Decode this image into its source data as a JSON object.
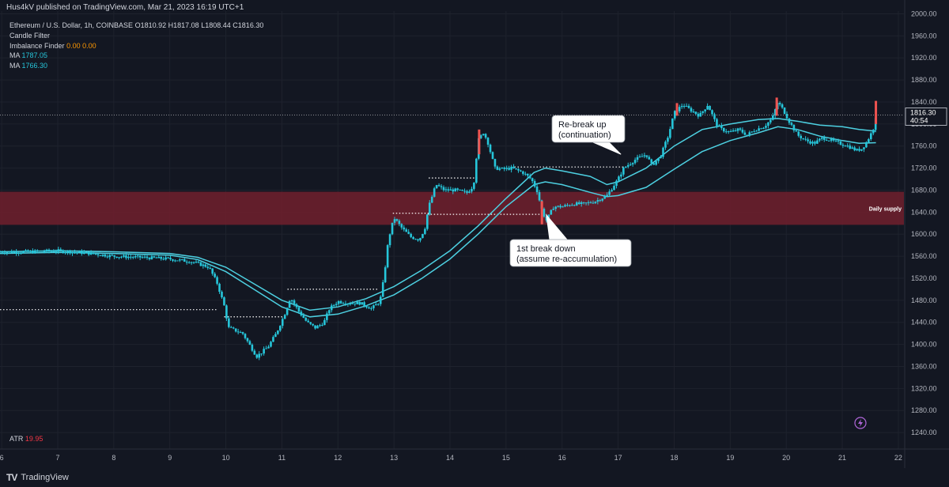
{
  "header": {
    "published": "Hus4kV published on TradingView.com, Mar 21, 2023 16:19 UTC+1"
  },
  "legend": {
    "symbol": "Ethereum / U.S. Dollar, 1h, COINBASE",
    "o_label": "O",
    "o_value": "1810.92",
    "h_label": "H",
    "h_value": "1817.08",
    "l_label": "L",
    "l_value": "1808.44",
    "c_label": "C",
    "c_value": "1816.30",
    "indicator_1": "Candle Filter",
    "indicator_2": "Imbalance Finder",
    "indicator_2_values": [
      "0.00",
      "0.00"
    ],
    "ma1_label": "MA",
    "ma1_value": "1787.05",
    "ma2_label": "MA",
    "ma2_value": "1766.30"
  },
  "atr": {
    "label": "ATR",
    "value": "19.95"
  },
  "price_tag": {
    "price": "1816.30",
    "countdown": "40:54"
  },
  "footer": {
    "brand": "TradingView"
  },
  "colors": {
    "background": "#131722",
    "grid": "#1e222d",
    "up": "#26a69a",
    "down": "#ef5350",
    "wick": "#26c6da",
    "ma": "#4dd0e1",
    "zone": "#6b1f2c",
    "dotted": "#ffffff",
    "orange": "#ff9800",
    "atr_red": "#f23645",
    "ma_label": "#26c6da"
  },
  "chart_data": {
    "type": "candlestick",
    "title": "Ethereum / U.S. Dollar, 1h, COINBASE",
    "x_tick_labels": [
      "6",
      "7",
      "8",
      "9",
      "10",
      "11",
      "12",
      "13",
      "14",
      "15",
      "16",
      "17",
      "18",
      "19",
      "20",
      "21",
      "22"
    ],
    "x_ticks_day": [
      6,
      7,
      8,
      9,
      10,
      11,
      12,
      13,
      14,
      15,
      16,
      17,
      18,
      19,
      20,
      21,
      22
    ],
    "y_tick_labels": [
      "2000.00",
      "1960.00",
      "1920.00",
      "1880.00",
      "1840.00",
      "1800.00",
      "1760.00",
      "1720.00",
      "1680.00",
      "1640.00",
      "1600.00",
      "1560.00",
      "1520.00",
      "1480.00",
      "1440.00",
      "1400.00",
      "1360.00",
      "1320.00",
      "1280.00",
      "1240.00"
    ],
    "y_ticks": [
      2000,
      1960,
      1920,
      1880,
      1840,
      1800,
      1760,
      1720,
      1680,
      1640,
      1600,
      1560,
      1520,
      1480,
      1440,
      1400,
      1360,
      1320,
      1280,
      1240
    ],
    "x_range_days": [
      5.97,
      22.1
    ],
    "y_range": [
      1210,
      2005
    ],
    "grid": true,
    "current_price": 1816.3,
    "price_path": [
      [
        5.97,
        1568
      ],
      [
        6.5,
        1568
      ],
      [
        7.0,
        1570
      ],
      [
        7.5,
        1566
      ],
      [
        8.0,
        1560
      ],
      [
        8.5,
        1558
      ],
      [
        9.0,
        1555
      ],
      [
        9.4,
        1550
      ],
      [
        9.7,
        1540
      ],
      [
        9.85,
        1510
      ],
      [
        9.97,
        1470
      ],
      [
        10.05,
        1430
      ],
      [
        10.3,
        1420
      ],
      [
        10.55,
        1378
      ],
      [
        10.75,
        1395
      ],
      [
        10.9,
        1420
      ],
      [
        11.05,
        1455
      ],
      [
        11.15,
        1485
      ],
      [
        11.3,
        1460
      ],
      [
        11.45,
        1440
      ],
      [
        11.6,
        1430
      ],
      [
        11.75,
        1440
      ],
      [
        11.85,
        1465
      ],
      [
        12.0,
        1478
      ],
      [
        12.2,
        1475
      ],
      [
        12.4,
        1475
      ],
      [
        12.6,
        1465
      ],
      [
        12.75,
        1478
      ],
      [
        12.82,
        1520
      ],
      [
        12.9,
        1590
      ],
      [
        13.0,
        1630
      ],
      [
        13.15,
        1610
      ],
      [
        13.3,
        1595
      ],
      [
        13.45,
        1590
      ],
      [
        13.55,
        1610
      ],
      [
        13.62,
        1650
      ],
      [
        13.75,
        1690
      ],
      [
        13.9,
        1680
      ],
      [
        14.1,
        1680
      ],
      [
        14.3,
        1675
      ],
      [
        14.42,
        1688
      ],
      [
        14.5,
        1770
      ],
      [
        14.6,
        1785
      ],
      [
        14.68,
        1765
      ],
      [
        14.8,
        1720
      ],
      [
        14.95,
        1718
      ],
      [
        15.1,
        1720
      ],
      [
        15.3,
        1712
      ],
      [
        15.45,
        1700
      ],
      [
        15.55,
        1680
      ],
      [
        15.65,
        1640
      ],
      [
        15.72,
        1625
      ],
      [
        15.85,
        1650
      ],
      [
        16.0,
        1650
      ],
      [
        16.2,
        1655
      ],
      [
        16.4,
        1655
      ],
      [
        16.6,
        1660
      ],
      [
        16.8,
        1670
      ],
      [
        16.9,
        1685
      ],
      [
        17.0,
        1700
      ],
      [
        17.1,
        1720
      ],
      [
        17.3,
        1735
      ],
      [
        17.5,
        1745
      ],
      [
        17.6,
        1725
      ],
      [
        17.75,
        1740
      ],
      [
        17.9,
        1780
      ],
      [
        18.0,
        1820
      ],
      [
        18.15,
        1835
      ],
      [
        18.3,
        1825
      ],
      [
        18.45,
        1815
      ],
      [
        18.6,
        1835
      ],
      [
        18.75,
        1800
      ],
      [
        18.85,
        1790
      ],
      [
        19.0,
        1785
      ],
      [
        19.15,
        1790
      ],
      [
        19.3,
        1780
      ],
      [
        19.45,
        1790
      ],
      [
        19.6,
        1795
      ],
      [
        19.75,
        1810
      ],
      [
        19.85,
        1840
      ],
      [
        19.95,
        1825
      ],
      [
        20.05,
        1805
      ],
      [
        20.2,
        1780
      ],
      [
        20.35,
        1770
      ],
      [
        20.5,
        1765
      ],
      [
        20.65,
        1775
      ],
      [
        20.8,
        1770
      ],
      [
        20.95,
        1765
      ],
      [
        21.1,
        1760
      ],
      [
        21.25,
        1752
      ],
      [
        21.35,
        1755
      ],
      [
        21.45,
        1770
      ],
      [
        21.55,
        1790
      ],
      [
        21.6,
        1816
      ]
    ],
    "moving_averages": [
      {
        "label": "MA",
        "value": 1787.05,
        "points": [
          [
            5.97,
            1568
          ],
          [
            7.0,
            1570
          ],
          [
            8.0,
            1568
          ],
          [
            9.0,
            1565
          ],
          [
            9.5,
            1558
          ],
          [
            10.0,
            1540
          ],
          [
            10.5,
            1510
          ],
          [
            11.0,
            1480
          ],
          [
            11.5,
            1462
          ],
          [
            12.0,
            1468
          ],
          [
            12.5,
            1483
          ],
          [
            13.0,
            1505
          ],
          [
            13.5,
            1535
          ],
          [
            14.0,
            1570
          ],
          [
            14.5,
            1615
          ],
          [
            15.0,
            1665
          ],
          [
            15.5,
            1712
          ],
          [
            15.7,
            1720
          ],
          [
            16.0,
            1715
          ],
          [
            16.5,
            1705
          ],
          [
            16.8,
            1690
          ],
          [
            17.0,
            1695
          ],
          [
            17.5,
            1720
          ],
          [
            18.0,
            1760
          ],
          [
            18.5,
            1790
          ],
          [
            19.0,
            1800
          ],
          [
            19.5,
            1808
          ],
          [
            19.85,
            1810
          ],
          [
            20.2,
            1805
          ],
          [
            20.6,
            1798
          ],
          [
            21.0,
            1795
          ],
          [
            21.3,
            1790
          ],
          [
            21.6,
            1787
          ]
        ]
      },
      {
        "label": "MA",
        "value": 1766.3,
        "points": [
          [
            5.97,
            1565
          ],
          [
            7.0,
            1567
          ],
          [
            8.0,
            1565
          ],
          [
            9.0,
            1562
          ],
          [
            9.5,
            1554
          ],
          [
            10.0,
            1532
          ],
          [
            10.5,
            1500
          ],
          [
            11.0,
            1468
          ],
          [
            11.5,
            1450
          ],
          [
            12.0,
            1455
          ],
          [
            12.5,
            1470
          ],
          [
            13.0,
            1490
          ],
          [
            13.5,
            1520
          ],
          [
            14.0,
            1555
          ],
          [
            14.5,
            1600
          ],
          [
            15.0,
            1650
          ],
          [
            15.5,
            1690
          ],
          [
            15.7,
            1695
          ],
          [
            16.0,
            1690
          ],
          [
            16.5,
            1676
          ],
          [
            16.8,
            1668
          ],
          [
            17.0,
            1670
          ],
          [
            17.5,
            1685
          ],
          [
            18.0,
            1718
          ],
          [
            18.5,
            1750
          ],
          [
            19.0,
            1770
          ],
          [
            19.5,
            1784
          ],
          [
            19.85,
            1795
          ],
          [
            20.2,
            1790
          ],
          [
            20.6,
            1778
          ],
          [
            21.0,
            1770
          ],
          [
            21.3,
            1765
          ],
          [
            21.6,
            1766
          ]
        ]
      }
    ],
    "zones": [
      {
        "label": "Daily supply",
        "from": 1617,
        "to": 1677,
        "start_day": 5.97,
        "end_day": 22.1
      }
    ],
    "levels": [
      {
        "y": 1463,
        "from": 5.97,
        "to": 9.85
      },
      {
        "y": 1450,
        "from": 9.97,
        "to": 11.1
      },
      {
        "y": 1500,
        "from": 11.1,
        "to": 12.72
      },
      {
        "y": 1638,
        "from": 12.98,
        "to": 13.62
      },
      {
        "y": 1702,
        "from": 13.62,
        "to": 14.5
      },
      {
        "y": 1636,
        "from": 13.6,
        "to": 15.68
      },
      {
        "y": 1722,
        "from": 15.15,
        "to": 17.1
      },
      {
        "y": 1816.3,
        "from": 5.97,
        "to": 22.1
      }
    ],
    "annotations": [
      {
        "text": [
          "Re-break up",
          "(continuation)"
        ],
        "anchor_day": 17.05,
        "anchor_y": 1745
      },
      {
        "text": [
          "1st break down",
          "(assume re-accumulation)"
        ],
        "anchor_day": 15.72,
        "anchor_y": 1635
      }
    ]
  }
}
